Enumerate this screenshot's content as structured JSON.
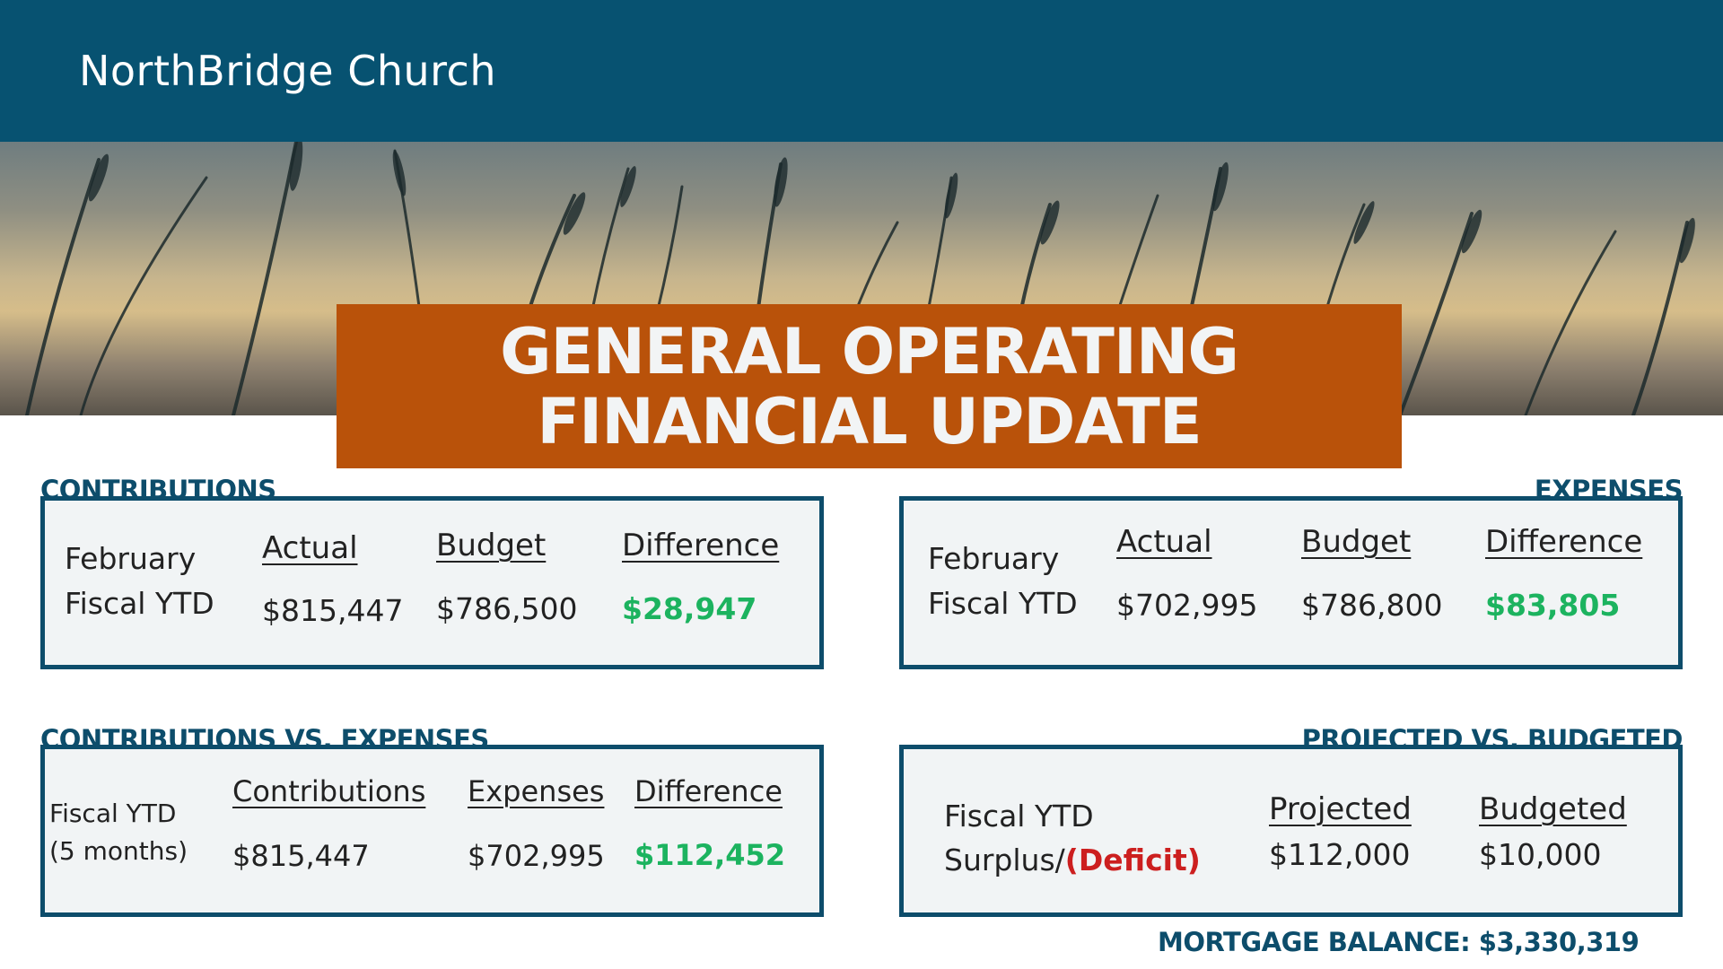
{
  "header": {
    "org_name": "NorthBridge Church"
  },
  "banner": {
    "title_line1": "GENERAL OPERATING",
    "title_line2": "FINANCIAL UPDATE"
  },
  "contributions": {
    "label": "CONTRIBUTIONS",
    "row_label_1": "February",
    "row_label_2": "Fiscal YTD",
    "actual_header": "Actual",
    "budget_header": "Budget",
    "difference_header": "Difference",
    "actual": "$815,447",
    "budget": "$786,500",
    "difference": "$28,947"
  },
  "expenses": {
    "label": "EXPENSES",
    "row_label_1": "February",
    "row_label_2": "Fiscal YTD",
    "actual_header": "Actual",
    "budget_header": "Budget",
    "difference_header": "Difference",
    "actual": "$702,995",
    "budget": "$786,800",
    "difference": "$83,805"
  },
  "contrib_vs_expenses": {
    "label": "CONTRIBUTIONS VS. EXPENSES",
    "row_label_1": "Fiscal YTD",
    "row_label_2": "(5 months)",
    "contributions_header": "Contributions",
    "expenses_header": "Expenses",
    "difference_header": "Difference",
    "contributions": "$815,447",
    "expenses": "$702,995",
    "difference": "$112,452"
  },
  "projected_vs_budgeted": {
    "label": "PROJECTED VS. BUDGETED",
    "row_label_1": "Fiscal YTD",
    "row_label_2a": "Surplus/",
    "row_label_2b": "(Deficit)",
    "projected_header": "Projected",
    "budgeted_header": "Budgeted",
    "projected": "$112,000",
    "budgeted": "$10,000"
  },
  "mortgage": {
    "text": "MORTGAGE BALANCE: $3,330,319"
  },
  "colors": {
    "header_bg": "#075271",
    "title_bg": "#b9520a",
    "label_navy": "#0d4d6b",
    "positive_green": "#1cb35f",
    "deficit_red": "#cc1f1f"
  }
}
